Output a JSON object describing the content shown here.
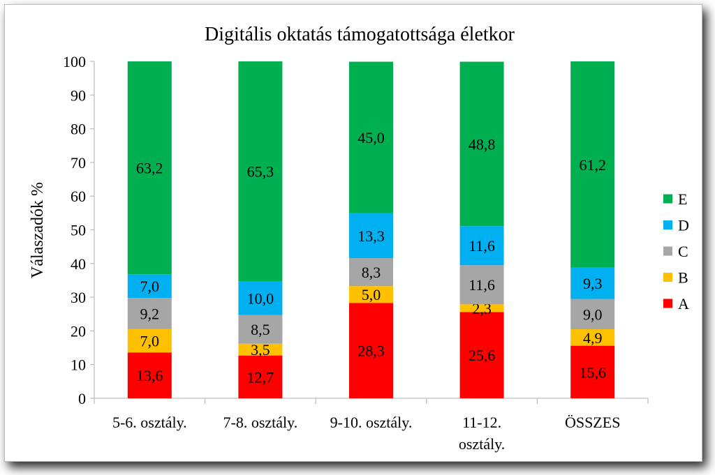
{
  "chart_data": {
    "type": "bar",
    "stacked": true,
    "title": "Digitális  oktatás támogatottsága életkor",
    "ylabel": "Válaszadók %",
    "xlabel": "",
    "ylim": [
      0,
      100
    ],
    "yticks": [
      "0",
      "10",
      "20",
      "30",
      "40",
      "50",
      "60",
      "70",
      "80",
      "90",
      "100"
    ],
    "categories": [
      [
        "5-6. osztály."
      ],
      [
        "7-8. osztály."
      ],
      [
        "9-10. osztály."
      ],
      [
        "11-12.",
        "osztály."
      ],
      [
        "ÖSSZES"
      ]
    ],
    "series": [
      {
        "name": "A",
        "color": "#ff0000",
        "values": [
          13.6,
          12.7,
          28.3,
          25.6,
          15.6
        ],
        "labels": [
          "13,6",
          "12,7",
          "28,3",
          "25,6",
          "15,6"
        ]
      },
      {
        "name": "B",
        "color": "#ffc000",
        "values": [
          7.0,
          3.5,
          5.0,
          2.3,
          4.9
        ],
        "labels": [
          "7,0",
          "3,5",
          "5,0",
          "2,3",
          "4,9"
        ]
      },
      {
        "name": "C",
        "color": "#a6a6a6",
        "values": [
          9.2,
          8.5,
          8.3,
          11.6,
          9.0
        ],
        "labels": [
          "9,2",
          "8,5",
          "8,3",
          "11,6",
          "9,0"
        ]
      },
      {
        "name": "D",
        "color": "#00b0f0",
        "values": [
          7.0,
          10.0,
          13.3,
          11.6,
          9.3
        ],
        "labels": [
          "7,0",
          "10,0",
          "13,3",
          "11,6",
          "9,3"
        ]
      },
      {
        "name": "E",
        "color": "#00b050",
        "values": [
          63.2,
          65.3,
          45.0,
          48.8,
          61.2
        ],
        "labels": [
          "63,2",
          "65,3",
          "45,0",
          "48,8",
          "61,2"
        ]
      }
    ],
    "legend": {
      "position": "right",
      "order": [
        "E",
        "D",
        "C",
        "B",
        "A"
      ]
    },
    "grid": false
  }
}
